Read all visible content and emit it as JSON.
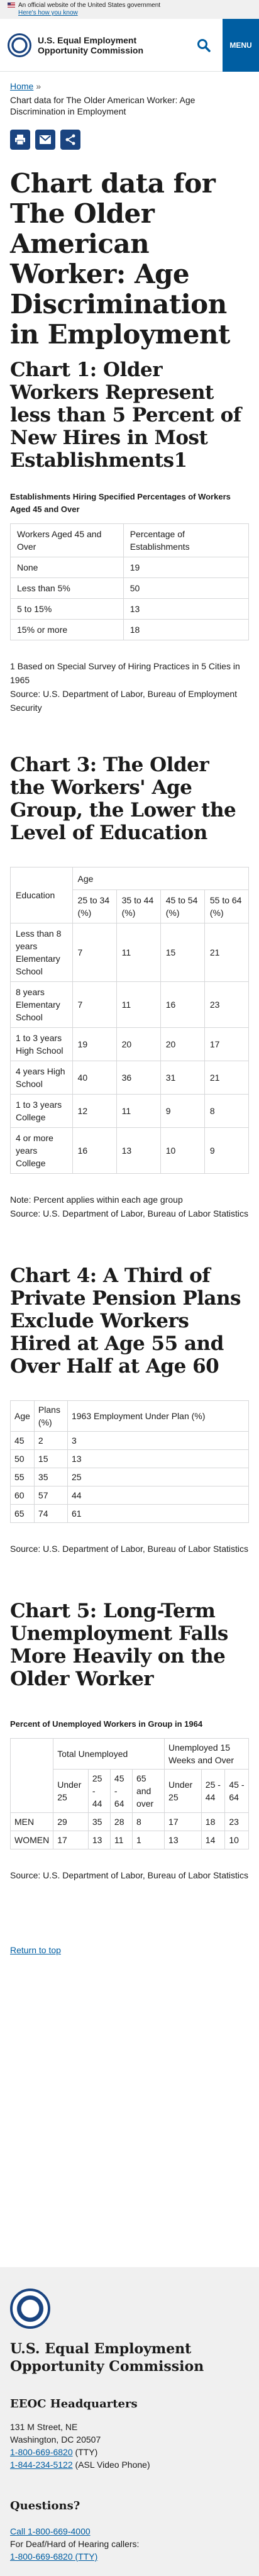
{
  "banner": {
    "text": "An official website of the United States government",
    "link": "Here's how you know"
  },
  "header": {
    "agency": "U.S. Equal Employment Opportunity Commission",
    "menu": "MENU"
  },
  "breadcrumb": {
    "home": "Home",
    "sep": "»",
    "current": "Chart data for The Older American Worker: Age Discrimination in Employment"
  },
  "title": "Chart data for The Older American Worker: Age Discrimination in Employment",
  "chart1": {
    "heading": "Chart 1: Older Workers Represent less than 5 Percent of New Hires in Most Establishments1",
    "caption": "Establishments Hiring Specified Percentages of Workers Aged 45 and Over",
    "col1": "Workers Aged 45 and Over",
    "col2": "Percentage of Establishments",
    "rows": [
      [
        "None",
        "19"
      ],
      [
        "Less than 5%",
        "50"
      ],
      [
        "5 to 15%",
        "13"
      ],
      [
        "15% or more",
        "18"
      ]
    ],
    "note1": "1 Based on Special Survey of Hiring Practices in 5 Cities in 1965",
    "source": "Source: U.S. Department of Labor, Bureau of Employment Security"
  },
  "chart3": {
    "heading": "Chart 3: The Older the Workers' Age Group, the Lower the Level of Education",
    "age": "Age",
    "education": "Education",
    "cols": [
      "25 to 34 (%)",
      "35 to 44 (%)",
      "45 to 54 (%)",
      "55 to 64 (%)"
    ],
    "rows": [
      [
        "Less than 8 years Elementary School",
        "7",
        "11",
        "15",
        "21"
      ],
      [
        "8 years Elementary School",
        "7",
        "11",
        "16",
        "23"
      ],
      [
        "1 to 3 years High School",
        "19",
        "20",
        "20",
        "17"
      ],
      [
        "4 years High School",
        "40",
        "36",
        "31",
        "21"
      ],
      [
        "1 to 3 years College",
        "12",
        "11",
        "9",
        "8"
      ],
      [
        "4 or more years College",
        "16",
        "13",
        "10",
        "9"
      ]
    ],
    "note": "Note: Percent applies within each age group",
    "source": "Source: U.S. Department of Labor, Bureau of Labor Statistics"
  },
  "chart4": {
    "heading": "Chart 4: A Third of Private Pension Plans Exclude Workers Hired at Age 55 and Over Half at Age 60",
    "cols": [
      "Age",
      "Plans (%)",
      "1963 Employment Under Plan (%)"
    ],
    "rows": [
      [
        "45",
        "2",
        "3"
      ],
      [
        "50",
        "15",
        "13"
      ],
      [
        "55",
        "35",
        "25"
      ],
      [
        "60",
        "57",
        "44"
      ],
      [
        "65",
        "74",
        "61"
      ]
    ],
    "source": "Source: U.S. Department of Labor, Bureau of Labor Statistics"
  },
  "chart5": {
    "heading": "Chart 5: Long-Term Unemployment Falls More Heavily on the Older Worker",
    "caption": "Percent of Unemployed Workers in Group in 1964",
    "group1": "Total Unemployed",
    "group2": "Unemployed 15 Weeks and Over",
    "sub": [
      "Under 25",
      "25 - 44",
      "45 - 64",
      "65 and over",
      "Under 25",
      "25 - 44",
      "45 - 64"
    ],
    "rows": [
      [
        "MEN",
        "29",
        "35",
        "28",
        "8",
        "17",
        "18",
        "23"
      ],
      [
        "WOMEN",
        "17",
        "13",
        "11",
        "1",
        "13",
        "14",
        "10"
      ]
    ],
    "source": "Source: U.S. Department of Labor, Bureau of Labor Statistics"
  },
  "return": "Return to top",
  "footer": {
    "agency": "U.S. Equal Employment Opportunity Commission",
    "hq": "EEOC Headquarters",
    "addr1": "131 M Street, NE",
    "addr2": "Washington, DC 20507",
    "phone1": "1-800-669-6820",
    "phone1_suffix": " (TTY)",
    "phone2": "1-844-234-5122",
    "phone2_suffix": " (ASL Video Phone)",
    "questions": "Questions?",
    "call": "Call 1-800-669-4000",
    "deaf": "For Deaf/Hard of Hearing callers:",
    "deaf_phone": "1-800-669-6820 (TTY)"
  }
}
